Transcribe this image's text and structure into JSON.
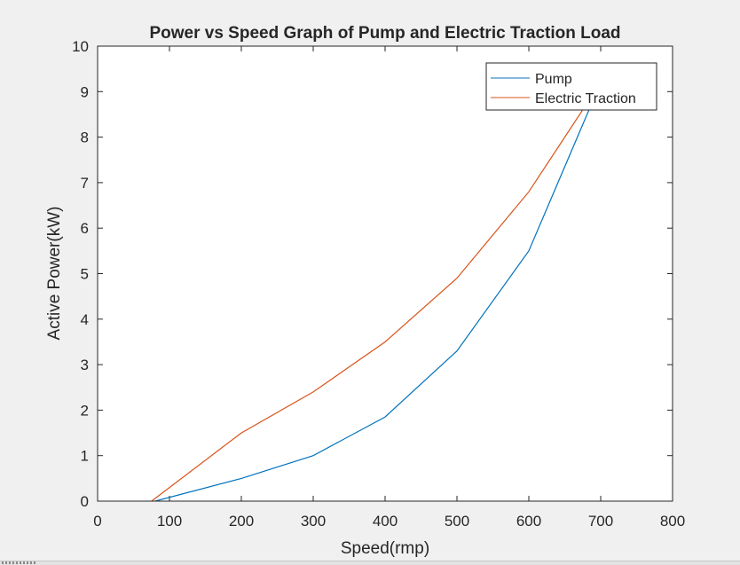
{
  "chart_data": {
    "type": "line",
    "title": "Power vs Speed Graph of Pump and Electric Traction Load",
    "xlabel": "Speed(rmp)",
    "ylabel": "Active Power(kW)",
    "xlim": [
      0,
      800
    ],
    "ylim": [
      0,
      10
    ],
    "xticks": [
      0,
      100,
      200,
      300,
      400,
      500,
      600,
      700,
      800
    ],
    "yticks": [
      0,
      1,
      2,
      3,
      4,
      5,
      6,
      7,
      8,
      9,
      10
    ],
    "grid": false,
    "legend_position": "top-right",
    "series": [
      {
        "name": "Pump",
        "color": "#0072bd",
        "x": [
          80,
          200,
          300,
          400,
          500,
          600,
          700
        ],
        "y": [
          0,
          0.5,
          1.0,
          1.85,
          3.3,
          5.5,
          9.2
        ]
      },
      {
        "name": "Electric Traction",
        "color": "#d95319",
        "x": [
          75,
          200,
          300,
          400,
          500,
          600,
          700
        ],
        "y": [
          0,
          1.5,
          2.4,
          3.5,
          4.9,
          6.8,
          9.2
        ]
      }
    ]
  }
}
